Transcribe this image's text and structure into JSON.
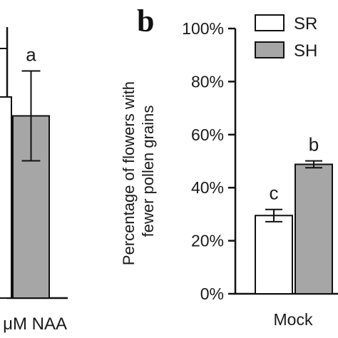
{
  "chart_data": [
    {
      "panel": "a",
      "type": "bar",
      "categories": [
        "μM NAA"
      ],
      "series": [
        {
          "name": "SR",
          "values": [
            null
          ]
        },
        {
          "name": "SH",
          "values": [
            73
          ]
        }
      ],
      "errors": [
        [
          null
        ],
        [
          18
        ]
      ],
      "significance": [
        [
          ""
        ],
        [
          "a"
        ]
      ],
      "colors": {
        "SR": "#ffffff",
        "SH": "#a6a6a6"
      }
    },
    {
      "panel": "b",
      "type": "bar",
      "categories": [
        "Mock"
      ],
      "series": [
        {
          "name": "SR",
          "values": [
            29.5
          ]
        },
        {
          "name": "SH",
          "values": [
            48.8
          ]
        }
      ],
      "errors": [
        [
          2.3
        ],
        [
          1.3
        ]
      ],
      "significance": [
        [
          "c"
        ],
        [
          "b"
        ]
      ],
      "ylabel": "Percentage of flowers with fewer pollen grains",
      "ylabel_lines": [
        "Percentage of flowers with",
        "fewer pollen grains"
      ],
      "yticks": [
        "0%",
        "20%",
        "40%",
        "60%",
        "80%",
        "100%"
      ],
      "ylim": [
        0,
        100
      ],
      "legend": [
        "SR",
        "SH"
      ],
      "legend_position": "top-right",
      "colors": {
        "SR": "#ffffff",
        "SH": "#a6a6a6"
      }
    }
  ],
  "panel_b_letter": "b"
}
